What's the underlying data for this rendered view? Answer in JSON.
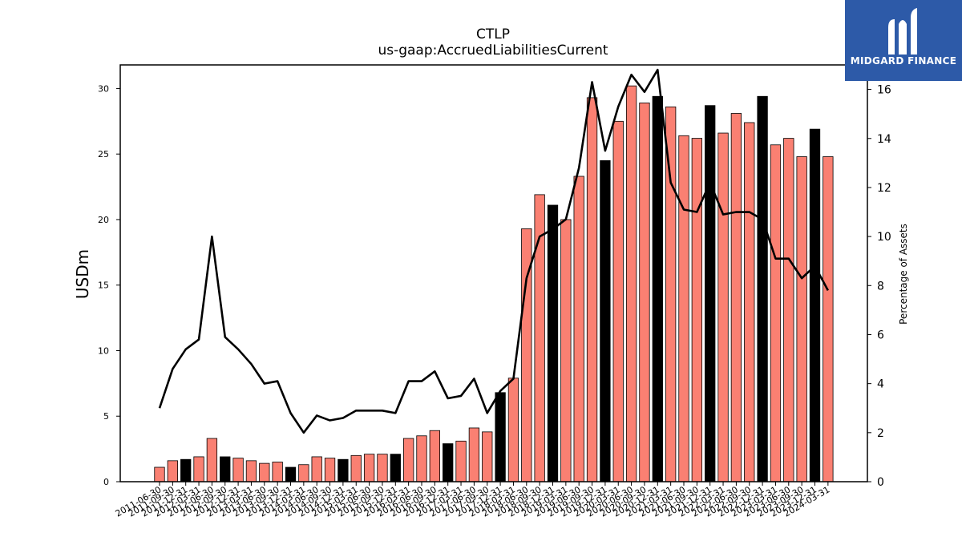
{
  "chart_data": {
    "type": "bar",
    "title": "CTLP",
    "subtitle": "us-gaap:AccruedLiabilitiesCurrent",
    "ylabel": "USDm",
    "y2label": "Percentage of Assets",
    "ylim": [
      0,
      31.8
    ],
    "y2lim": [
      0,
      17.0
    ],
    "yticks": [
      0,
      5,
      10,
      15,
      20,
      25,
      30
    ],
    "y2ticks": [
      0,
      2,
      4,
      6,
      8,
      10,
      12,
      14,
      16
    ],
    "categories": [
      "2011-06-30",
      "2011-09-30",
      "2011-12-31",
      "2012-03-31",
      "2012-06-30",
      "2012-09-30",
      "2012-12-31",
      "2013-03-31",
      "2013-06-30",
      "2013-09-30",
      "2013-12-31",
      "2014-03-31",
      "2014-06-30",
      "2014-09-30",
      "2014-12-31",
      "2015-03-31",
      "2015-06-30",
      "2015-09-30",
      "2015-12-31",
      "2016-03-31",
      "2016-06-30",
      "2016-09-30",
      "2016-12-31",
      "2017-03-31",
      "2017-06-30",
      "2017-09-30",
      "2017-12-31",
      "2018-03-31",
      "2018-06-30",
      "2018-09-30",
      "2018-12-31",
      "2019-03-31",
      "2019-06-30",
      "2019-09-30",
      "2019-12-31",
      "2020-03-31",
      "2020-06-30",
      "2020-09-30",
      "2020-12-31",
      "2021-03-31",
      "2021-06-30",
      "2021-09-30",
      "2021-12-31",
      "2022-03-31",
      "2022-06-30",
      "2022-09-30",
      "2022-12-31",
      "2023-03-31",
      "2023-06-30",
      "2023-09-30",
      "2023-12-31",
      "2024-03-31"
    ],
    "series": [
      {
        "type": "bar",
        "axis": "left",
        "values": [
          1.1,
          1.6,
          1.7,
          1.9,
          3.3,
          1.9,
          1.8,
          1.6,
          1.4,
          1.5,
          1.1,
          1.3,
          1.9,
          1.8,
          1.7,
          2.0,
          2.1,
          2.1,
          2.1,
          3.3,
          3.5,
          3.9,
          2.9,
          3.1,
          4.1,
          3.8,
          6.8,
          7.9,
          19.3,
          21.9,
          21.1,
          20.0,
          23.3,
          29.3,
          24.5,
          27.5,
          30.2,
          28.9,
          29.4,
          28.6,
          26.4,
          26.2,
          28.7,
          26.6,
          28.1,
          27.4,
          29.4,
          25.7,
          26.2,
          24.8,
          26.9,
          24.8
        ],
        "highlight": [
          2,
          5,
          10,
          14,
          18,
          22,
          26,
          30,
          34,
          38,
          42,
          46,
          50
        ],
        "color": "#fa8072",
        "highlight_color": "#000000"
      },
      {
        "type": "line",
        "axis": "right",
        "values": [
          3.0,
          4.6,
          5.4,
          5.8,
          10.0,
          5.9,
          5.4,
          4.8,
          4.0,
          4.1,
          2.8,
          2.0,
          2.7,
          2.5,
          2.6,
          2.9,
          2.9,
          2.9,
          2.8,
          4.1,
          4.1,
          4.5,
          3.4,
          3.5,
          4.2,
          2.8,
          3.7,
          4.2,
          8.3,
          10.0,
          10.3,
          10.7,
          12.8,
          16.3,
          13.5,
          15.3,
          16.6,
          15.9,
          16.8,
          12.2,
          11.1,
          11.0,
          12.2,
          10.9,
          11.0,
          11.0,
          10.7,
          9.1,
          9.1,
          8.3,
          8.8,
          7.8
        ],
        "color": "#000000"
      }
    ]
  },
  "logo": {
    "text": "MIDGARD FINANCE",
    "bg_color": "#2d5aa8"
  }
}
